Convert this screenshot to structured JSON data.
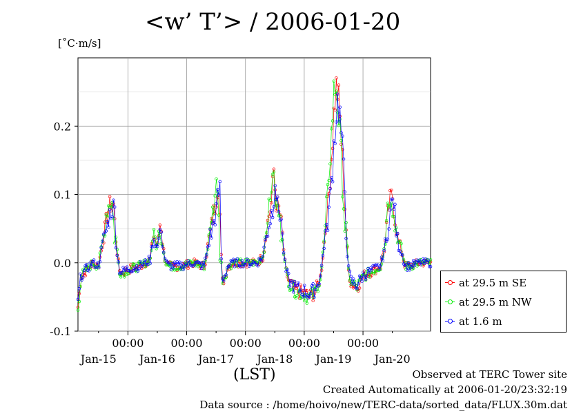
{
  "chart_data": {
    "type": "line",
    "title": "<w’ T’> / 2006-01-20",
    "ylabel": "[˚C·m/s]",
    "xlabel": "(LST)",
    "ylim": [
      -0.1,
      0.3
    ],
    "y_ticks": [
      {
        "value": 0.2,
        "label": "0.2"
      },
      {
        "value": 0.1,
        "label": "0.1"
      },
      {
        "value": 0.0,
        "label": "0.0"
      },
      {
        "value": -0.1,
        "label": "-0.1"
      }
    ],
    "xlim_days": [
      -0.85,
      5.15
    ],
    "x_time_labels": [
      "00:00",
      "00:00",
      "00:00",
      "00:00",
      "00:00"
    ],
    "x_day_labels": [
      "Jan-15",
      "Jan-16",
      "Jan-17",
      "Jan-18",
      "Jan-19",
      "Jan-20"
    ],
    "grid": true,
    "legend_position": "right",
    "series": [
      {
        "name": "at 29.5 m SE",
        "color": "#ff0000",
        "marker": "circle"
      },
      {
        "name": "at 29.5 m NW",
        "color": "#00ee00",
        "marker": "circle"
      },
      {
        "name": "at 1.6 m",
        "color": "#0000ff",
        "marker": "circle"
      }
    ],
    "base_profile": [
      [
        -0.85,
        -0.065
      ],
      [
        -0.8,
        -0.02
      ],
      [
        -0.7,
        -0.01
      ],
      [
        -0.6,
        0.0
      ],
      [
        -0.5,
        -0.005
      ],
      [
        -0.45,
        0.02
      ],
      [
        -0.4,
        0.045
      ],
      [
        -0.35,
        0.07
      ],
      [
        -0.3,
        0.085
      ],
      [
        -0.25,
        0.09
      ],
      [
        -0.2,
        0.03
      ],
      [
        -0.15,
        -0.01
      ],
      [
        -0.1,
        -0.015
      ],
      [
        0.0,
        -0.01
      ],
      [
        0.2,
        -0.005
      ],
      [
        0.3,
        0.0
      ],
      [
        0.38,
        0.005
      ],
      [
        0.4,
        0.02
      ],
      [
        0.42,
        0.035
      ],
      [
        0.45,
        0.04
      ],
      [
        0.5,
        0.02
      ],
      [
        0.53,
        0.045
      ],
      [
        0.55,
        0.06
      ],
      [
        0.57,
        0.05
      ],
      [
        0.6,
        0.02
      ],
      [
        0.65,
        0.0
      ],
      [
        0.7,
        -0.005
      ],
      [
        0.9,
        -0.005
      ],
      [
        1.1,
        0.0
      ],
      [
        1.3,
        -0.005
      ],
      [
        1.35,
        0.02
      ],
      [
        1.4,
        0.045
      ],
      [
        1.45,
        0.07
      ],
      [
        1.48,
        0.08
      ],
      [
        1.52,
        0.11
      ],
      [
        1.55,
        0.12
      ],
      [
        1.6,
        -0.03
      ],
      [
        1.65,
        -0.02
      ],
      [
        1.7,
        -0.005
      ],
      [
        1.8,
        0.0
      ],
      [
        2.0,
        0.0
      ],
      [
        2.2,
        0.0
      ],
      [
        2.3,
        0.01
      ],
      [
        2.35,
        0.045
      ],
      [
        2.4,
        0.07
      ],
      [
        2.45,
        0.09
      ],
      [
        2.48,
        0.14
      ],
      [
        2.52,
        0.09
      ],
      [
        2.58,
        0.075
      ],
      [
        2.62,
        0.05
      ],
      [
        2.68,
        -0.01
      ],
      [
        2.75,
        -0.03
      ],
      [
        2.85,
        -0.04
      ],
      [
        3.0,
        -0.045
      ],
      [
        3.1,
        -0.05
      ],
      [
        3.2,
        -0.04
      ],
      [
        3.28,
        -0.02
      ],
      [
        3.35,
        0.04
      ],
      [
        3.42,
        0.1
      ],
      [
        3.48,
        0.18
      ],
      [
        3.52,
        0.24
      ],
      [
        3.56,
        0.26
      ],
      [
        3.6,
        0.22
      ],
      [
        3.65,
        0.15
      ],
      [
        3.7,
        0.07
      ],
      [
        3.75,
        -0.01
      ],
      [
        3.8,
        -0.03
      ],
      [
        3.9,
        -0.035
      ],
      [
        4.0,
        -0.02
      ],
      [
        4.1,
        -0.015
      ],
      [
        4.2,
        -0.01
      ],
      [
        4.3,
        -0.005
      ],
      [
        4.38,
        0.03
      ],
      [
        4.42,
        0.07
      ],
      [
        4.46,
        0.09
      ],
      [
        4.5,
        0.1
      ],
      [
        4.55,
        0.06
      ],
      [
        4.6,
        0.03
      ],
      [
        4.65,
        0.02
      ],
      [
        4.72,
        -0.005
      ],
      [
        4.8,
        -0.005
      ],
      [
        4.95,
        0.0
      ],
      [
        5.15,
        0.0
      ]
    ]
  },
  "footer": {
    "observed": "Observed at TERC Tower site",
    "created": "Created Automatically at 2006-01-20/23:32:19",
    "source": "Data source : /home/hoivo/new/TERC-data/sorted_data/FLUX.30m.dat"
  }
}
